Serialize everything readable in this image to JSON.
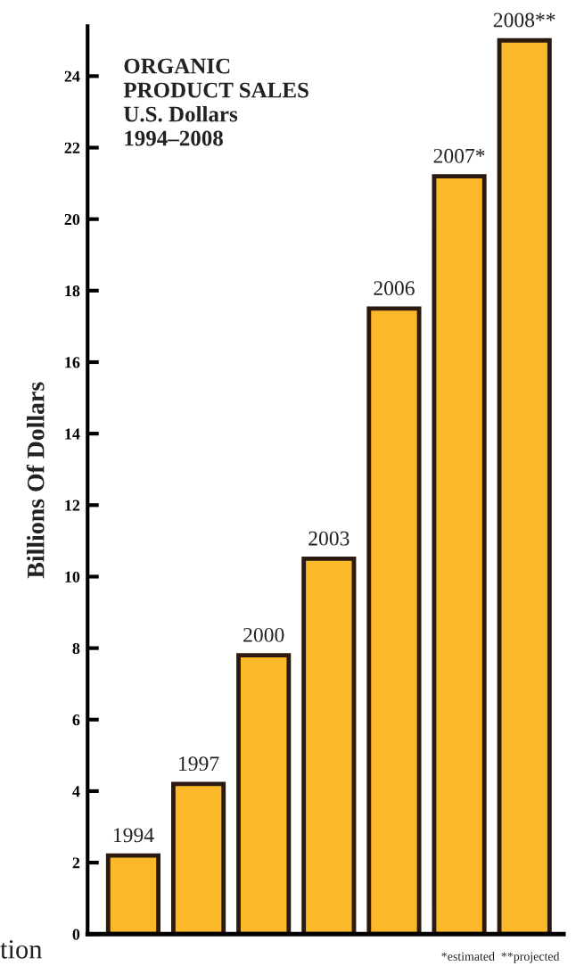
{
  "chart_data": {
    "type": "bar",
    "title": "ORGANIC\nPRODUCT SALES\nU.S. Dollars\n1994–2008",
    "ylabel": "Billions Of Dollars",
    "categories": [
      "1994",
      "1997",
      "2000",
      "2003",
      "2006",
      "2007*",
      "2008**"
    ],
    "values": [
      2.2,
      4.2,
      7.8,
      10.5,
      17.5,
      21.2,
      25.0
    ],
    "color": "#fbb829",
    "ylim": [
      0,
      25.4
    ],
    "yticks": [
      0,
      2,
      4,
      6,
      8,
      10,
      12,
      14,
      16,
      18,
      20,
      22,
      24
    ],
    "annotations": [
      "*estimated  **projected",
      "tion"
    ]
  }
}
